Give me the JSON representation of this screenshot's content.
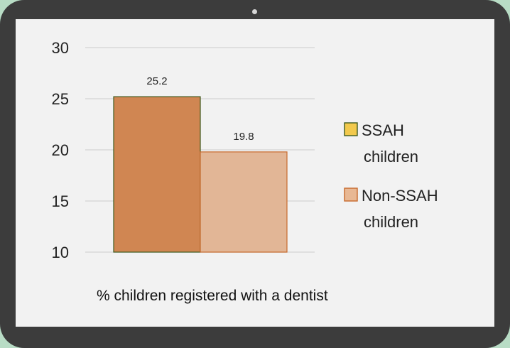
{
  "chart_data": {
    "type": "bar",
    "title": "",
    "xlabel": "% children registered with a dentist",
    "ylabel": "",
    "ylim": [
      10,
      30
    ],
    "yticks": [
      10,
      15,
      20,
      25,
      30
    ],
    "grid": true,
    "legend_position": "right",
    "series": [
      {
        "name_lines": [
          "SSAH",
          "children"
        ],
        "value": 25.2,
        "value_label": "25.2",
        "color": "#d08652",
        "stroke": "#3f5a1e",
        "legend_fill": "#f2c94c"
      },
      {
        "name_lines": [
          "Non-SSAH",
          "children"
        ],
        "value": 19.8,
        "value_label": "19.8",
        "color": "#e2b696",
        "stroke": "#c76a2c",
        "legend_fill": "#e8b894"
      }
    ]
  }
}
